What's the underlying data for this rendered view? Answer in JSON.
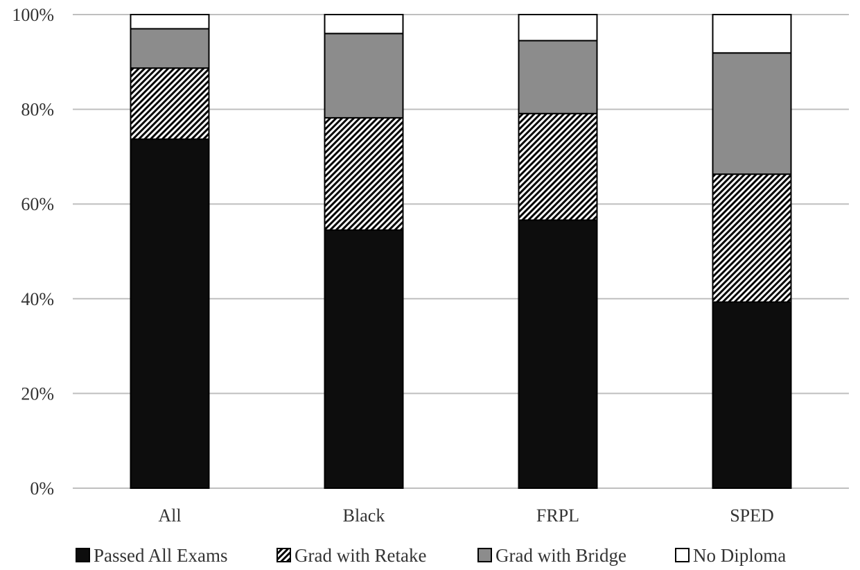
{
  "chart_data": {
    "type": "bar",
    "stacked": true,
    "categories": [
      "All",
      "Black",
      "FRPL",
      "SPED"
    ],
    "series": [
      {
        "name": "Passed All Exams",
        "values": [
          73.7,
          54.5,
          56.6,
          39.3
        ],
        "color": "#0d0d0d",
        "pattern": "solid"
      },
      {
        "name": "Grad with Retake",
        "values": [
          15.0,
          23.7,
          22.5,
          27.0
        ],
        "color": "#000000",
        "pattern": "diagonal-hatch"
      },
      {
        "name": "Grad with Bridge",
        "values": [
          8.3,
          17.8,
          15.4,
          25.6
        ],
        "color": "#8c8c8c",
        "pattern": "solid"
      },
      {
        "name": "No Diploma",
        "values": [
          3.0,
          4.0,
          5.5,
          8.1
        ],
        "color": "#ffffff",
        "pattern": "solid"
      }
    ],
    "ylim": [
      0,
      100
    ],
    "yticks": [
      "0%",
      "20%",
      "40%",
      "60%",
      "80%",
      "100%"
    ],
    "ytick_values": [
      0,
      20,
      40,
      60,
      80,
      100
    ],
    "grid": true,
    "legend_position": "bottom",
    "title": "",
    "xlabel": "",
    "ylabel": ""
  }
}
